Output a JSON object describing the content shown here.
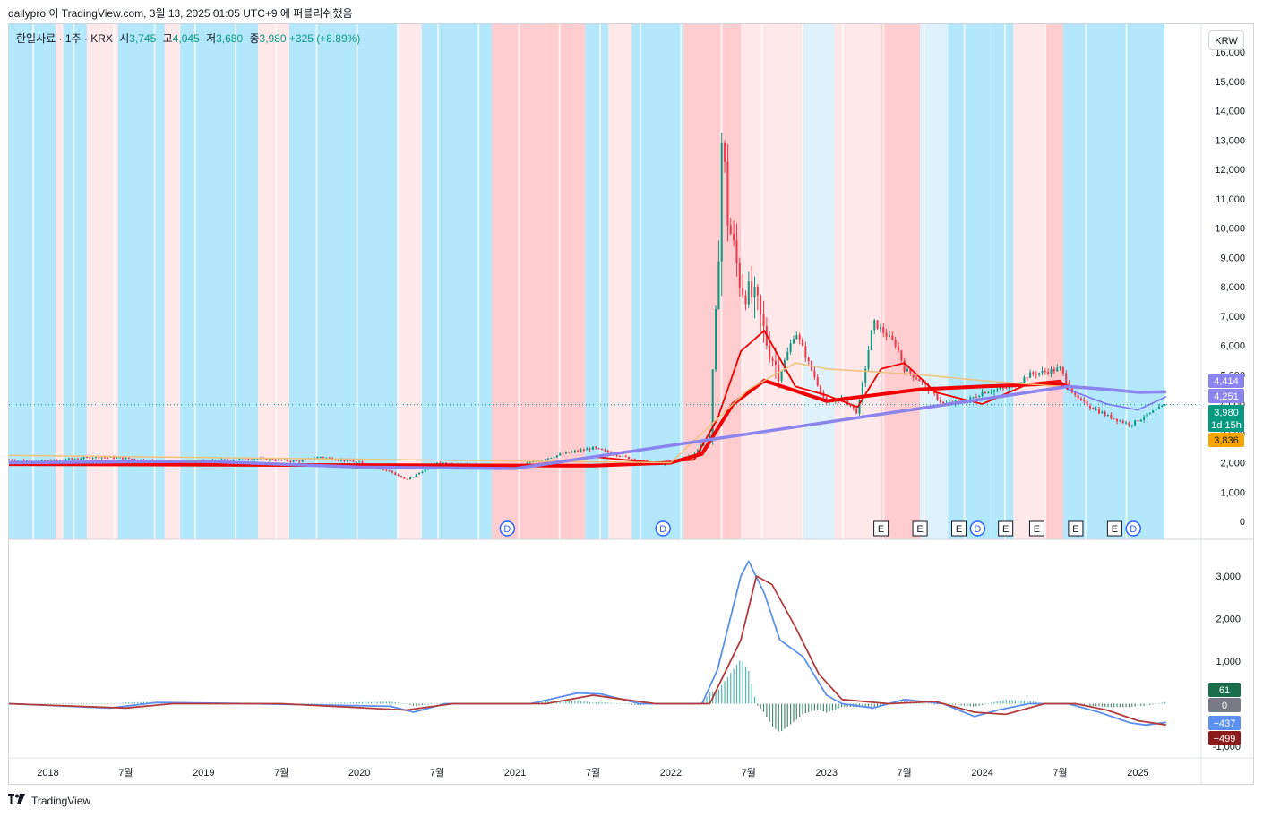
{
  "header": {
    "text": "dailypro 이 TradingView.com, 3월 13, 2025 01:05 UTC+9 에 퍼블리쉬했음"
  },
  "legend": {
    "symbol": "한일사료 · 1주 · KRX",
    "open_label": "시",
    "open": "3,745",
    "high_label": "고",
    "high": "4,045",
    "low_label": "저",
    "low": "3,680",
    "close_label": "종",
    "close": "3,980",
    "change": "+325 (+8.89%)"
  },
  "currency": "KRW",
  "footer": {
    "brand": "TradingView"
  },
  "colors": {
    "up": "#089981",
    "down": "#f23645",
    "ma_red": "#f00000",
    "ma_purple": "#8b84ee",
    "ma_tan": "#f0c27a",
    "macd": "#5b8ff0",
    "signal": "#b23b3b",
    "bg_blue": "#b3e7fb",
    "bg_lightblue": "#dff1fb",
    "bg_red": "#ffcdd0",
    "bg_pink": "#ffe8ea"
  },
  "chart_data": [
    {
      "type": "candlestick",
      "title": "한일사료 · 1주 · KRX",
      "y_axis_ticks": [
        "0",
        "1,000",
        "2,000",
        "3,000",
        "4,000",
        "5,000",
        "6,000",
        "7,000",
        "8,000",
        "9,000",
        "10,000",
        "11,000",
        "12,000",
        "13,000",
        "14,000",
        "15,000",
        "16,000"
      ],
      "ylim": [
        0,
        16000
      ],
      "x_axis_ticks": [
        "2018",
        "7월",
        "2019",
        "7월",
        "2020",
        "7월",
        "2021",
        "7월",
        "2022",
        "7월",
        "2023",
        "7월",
        "2024",
        "7월",
        "2025"
      ],
      "price_path": [
        [
          2017.75,
          2100
        ],
        [
          2018.0,
          2050
        ],
        [
          2018.3,
          2200
        ],
        [
          2018.5,
          2150
        ],
        [
          2018.8,
          2000
        ],
        [
          2019.0,
          2050
        ],
        [
          2019.3,
          2150
        ],
        [
          2019.6,
          2050
        ],
        [
          2019.75,
          2200
        ],
        [
          2020.0,
          2000
        ],
        [
          2020.2,
          1700
        ],
        [
          2020.3,
          1400
        ],
        [
          2020.5,
          2000
        ],
        [
          2020.8,
          1900
        ],
        [
          2021.0,
          1850
        ],
        [
          2021.3,
          2300
        ],
        [
          2021.5,
          2500
        ],
        [
          2021.7,
          2200
        ],
        [
          2021.9,
          1950
        ],
        [
          2022.0,
          2000
        ],
        [
          2022.15,
          2300
        ],
        [
          2022.25,
          3000
        ],
        [
          2022.3,
          8000
        ],
        [
          2022.33,
          13500
        ],
        [
          2022.36,
          10500
        ],
        [
          2022.45,
          8000
        ],
        [
          2022.55,
          7500
        ],
        [
          2022.62,
          6000
        ],
        [
          2022.7,
          5000
        ],
        [
          2022.8,
          6500
        ],
        [
          2022.9,
          5200
        ],
        [
          2023.0,
          4000
        ],
        [
          2023.1,
          4200
        ],
        [
          2023.2,
          3700
        ],
        [
          2023.3,
          6800
        ],
        [
          2023.45,
          6000
        ],
        [
          2023.5,
          5200
        ],
        [
          2023.6,
          4800
        ],
        [
          2023.75,
          4000
        ],
        [
          2023.9,
          4100
        ],
        [
          2024.0,
          4400
        ],
        [
          2024.2,
          4600
        ],
        [
          2024.3,
          5000
        ],
        [
          2024.5,
          5200
        ],
        [
          2024.6,
          4200
        ],
        [
          2024.8,
          3600
        ],
        [
          2024.95,
          3300
        ],
        [
          2025.05,
          3600
        ],
        [
          2025.18,
          3980
        ]
      ],
      "series": [
        {
          "name": "",
          "style": "thin-red",
          "values": [
            [
              2017.75,
              2000
            ],
            [
              2021.0,
              1850
            ],
            [
              2021.5,
              2200
            ],
            [
              2021.9,
              2000
            ],
            [
              2022.15,
              2100
            ],
            [
              2022.3,
              3500
            ],
            [
              2022.45,
              5800
            ],
            [
              2022.6,
              6500
            ],
            [
              2022.8,
              4600
            ],
            [
              2023.0,
              4300
            ],
            [
              2023.2,
              3900
            ],
            [
              2023.35,
              5200
            ],
            [
              2023.5,
              5400
            ],
            [
              2023.7,
              4400
            ],
            [
              2024.0,
              4000
            ],
            [
              2024.3,
              4700
            ],
            [
              2024.5,
              4800
            ],
            [
              2024.55,
              4500
            ]
          ]
        },
        {
          "name": "",
          "style": "thick-red",
          "values": [
            [
              2017.75,
              1950
            ],
            [
              2021.5,
              1900
            ],
            [
              2022.0,
              2000
            ],
            [
              2022.2,
              2300
            ],
            [
              2022.4,
              4000
            ],
            [
              2022.6,
              4800
            ],
            [
              2023.0,
              4100
            ],
            [
              2023.3,
              4300
            ],
            [
              2023.6,
              4500
            ],
            [
              2024.0,
              4600
            ],
            [
              2024.5,
              4700
            ],
            [
              2024.55,
              4600
            ]
          ]
        },
        {
          "name": "",
          "style": "tan",
          "values": [
            [
              2017.75,
              2250
            ],
            [
              2022.0,
              2000
            ],
            [
              2022.5,
              4500
            ],
            [
              2022.8,
              5400
            ],
            [
              2023.0,
              5200
            ],
            [
              2023.3,
              5100
            ],
            [
              2023.6,
              5000
            ],
            [
              2024.0,
              4800
            ],
            [
              2024.5,
              4600
            ],
            [
              2025.0,
              4400
            ],
            [
              2025.18,
              4414
            ]
          ]
        },
        {
          "name": "",
          "style": "purple",
          "values": [
            [
              2017.75,
              2000
            ],
            [
              2019.0,
              2050
            ],
            [
              2020.0,
              1850
            ],
            [
              2021.0,
              1800
            ],
            [
              2024.55,
              4600
            ],
            [
              2024.8,
              4500
            ],
            [
              2025.0,
              4400
            ],
            [
              2025.18,
              4414
            ]
          ]
        },
        {
          "name": "",
          "style": "lightpurple",
          "values": [
            [
              2024.55,
              4500
            ],
            [
              2024.8,
              4000
            ],
            [
              2025.0,
              3800
            ],
            [
              2025.18,
              4251
            ]
          ]
        }
      ],
      "price_tags": [
        {
          "value": 4414,
          "label": "4,414",
          "color": "#8b84ee"
        },
        {
          "value": 4251,
          "label": "4,251",
          "color": "#8b84ee"
        },
        {
          "value": 3980,
          "label": "3,980",
          "sub": "1d 15h",
          "color": "#089981"
        },
        {
          "value": 3836,
          "label": "3,836",
          "color": "#f7a600"
        }
      ],
      "event_markers": [
        {
          "x": 2020.95,
          "label": "D"
        },
        {
          "x": 2021.95,
          "label": "D"
        },
        {
          "x": 2023.35,
          "label": "E"
        },
        {
          "x": 2023.6,
          "label": "E"
        },
        {
          "x": 2023.85,
          "label": "E"
        },
        {
          "x": 2023.97,
          "label": "D"
        },
        {
          "x": 2024.15,
          "label": "E"
        },
        {
          "x": 2024.35,
          "label": "E"
        },
        {
          "x": 2024.6,
          "label": "E"
        },
        {
          "x": 2024.85,
          "label": "E"
        },
        {
          "x": 2024.97,
          "label": "D"
        }
      ],
      "background_bands": [
        {
          "from": 2017.75,
          "to": 2018.05,
          "c": "bg_blue"
        },
        {
          "from": 2018.05,
          "to": 2018.1,
          "c": "bg_pink"
        },
        {
          "from": 2018.1,
          "to": 2018.25,
          "c": "bg_blue"
        },
        {
          "from": 2018.25,
          "to": 2018.45,
          "c": "bg_pink"
        },
        {
          "from": 2018.45,
          "to": 2018.75,
          "c": "bg_blue"
        },
        {
          "from": 2018.75,
          "to": 2018.85,
          "c": "bg_pink"
        },
        {
          "from": 2018.85,
          "to": 2019.35,
          "c": "bg_blue"
        },
        {
          "from": 2019.35,
          "to": 2019.55,
          "c": "bg_pink"
        },
        {
          "from": 2019.55,
          "to": 2020.25,
          "c": "bg_blue"
        },
        {
          "from": 2020.25,
          "to": 2020.4,
          "c": "bg_pink"
        },
        {
          "from": 2020.4,
          "to": 2020.85,
          "c": "bg_blue"
        },
        {
          "from": 2020.85,
          "to": 2021.2,
          "c": "bg_red"
        },
        {
          "from": 2021.2,
          "to": 2021.45,
          "c": "bg_red"
        },
        {
          "from": 2021.45,
          "to": 2021.6,
          "c": "bg_blue"
        },
        {
          "from": 2021.6,
          "to": 2021.75,
          "c": "bg_pink"
        },
        {
          "from": 2021.75,
          "to": 2022.08,
          "c": "bg_blue"
        },
        {
          "from": 2022.08,
          "to": 2022.45,
          "c": "bg_red"
        },
        {
          "from": 2022.45,
          "to": 2022.85,
          "c": "bg_pink"
        },
        {
          "from": 2022.85,
          "to": 2023.05,
          "c": "bg_lightblue"
        },
        {
          "from": 2023.05,
          "to": 2023.35,
          "c": "bg_pink"
        },
        {
          "from": 2023.35,
          "to": 2023.6,
          "c": "bg_red"
        },
        {
          "from": 2023.6,
          "to": 2023.78,
          "c": "bg_lightblue"
        },
        {
          "from": 2023.78,
          "to": 2024.05,
          "c": "bg_blue"
        },
        {
          "from": 2024.05,
          "to": 2024.2,
          "c": "bg_blue"
        },
        {
          "from": 2024.2,
          "to": 2024.4,
          "c": "bg_pink"
        },
        {
          "from": 2024.4,
          "to": 2024.52,
          "c": "bg_red"
        },
        {
          "from": 2024.52,
          "to": 2025.17,
          "c": "bg_blue"
        }
      ]
    },
    {
      "type": "line",
      "title": "",
      "y_axis_ticks": [
        "-1,000",
        "0",
        "1,000",
        "2,000",
        "3,000"
      ],
      "ylim": [
        -1100,
        3500
      ],
      "series": [
        {
          "name": "",
          "style": "macd",
          "values": [
            [
              2017.75,
              0
            ],
            [
              2018.4,
              -100
            ],
            [
              2018.7,
              30
            ],
            [
              2019.3,
              0
            ],
            [
              2020.2,
              -60
            ],
            [
              2020.35,
              -200
            ],
            [
              2020.55,
              0
            ],
            [
              2021.1,
              0
            ],
            [
              2021.4,
              250
            ],
            [
              2021.55,
              230
            ],
            [
              2021.8,
              0
            ],
            [
              2022.2,
              0
            ],
            [
              2022.3,
              800
            ],
            [
              2022.45,
              3000
            ],
            [
              2022.5,
              3350
            ],
            [
              2022.6,
              2600
            ],
            [
              2022.7,
              1500
            ],
            [
              2022.85,
              1100
            ],
            [
              2023.0,
              200
            ],
            [
              2023.1,
              0
            ],
            [
              2023.3,
              -100
            ],
            [
              2023.5,
              100
            ],
            [
              2023.75,
              0
            ],
            [
              2023.95,
              -300
            ],
            [
              2024.1,
              -150
            ],
            [
              2024.3,
              0
            ],
            [
              2024.55,
              0
            ],
            [
              2024.75,
              -200
            ],
            [
              2024.95,
              -450
            ],
            [
              2025.05,
              -500
            ],
            [
              2025.18,
              -437
            ]
          ]
        },
        {
          "name": "",
          "style": "signal",
          "values": [
            [
              2017.75,
              0
            ],
            [
              2018.5,
              -100
            ],
            [
              2018.8,
              0
            ],
            [
              2019.5,
              0
            ],
            [
              2020.3,
              -150
            ],
            [
              2020.6,
              0
            ],
            [
              2021.2,
              0
            ],
            [
              2021.5,
              200
            ],
            [
              2021.7,
              100
            ],
            [
              2021.9,
              0
            ],
            [
              2022.25,
              0
            ],
            [
              2022.45,
              1500
            ],
            [
              2022.55,
              3000
            ],
            [
              2022.65,
              2800
            ],
            [
              2022.8,
              1800
            ],
            [
              2022.95,
              700
            ],
            [
              2023.1,
              100
            ],
            [
              2023.4,
              0
            ],
            [
              2023.7,
              50
            ],
            [
              2023.95,
              -200
            ],
            [
              2024.15,
              -250
            ],
            [
              2024.4,
              0
            ],
            [
              2024.6,
              0
            ],
            [
              2024.8,
              -150
            ],
            [
              2025.0,
              -400
            ],
            [
              2025.18,
              -499
            ]
          ]
        }
      ],
      "value_tags": [
        {
          "value": 61,
          "label": "61",
          "color": "#1b6e4b"
        },
        {
          "value": 0,
          "label": "0",
          "color": "#787b86"
        },
        {
          "value": -437,
          "label": "−437",
          "color": "#5b8ff0"
        },
        {
          "value": -499,
          "label": "−499",
          "color": "#8b1a1a"
        }
      ]
    }
  ]
}
